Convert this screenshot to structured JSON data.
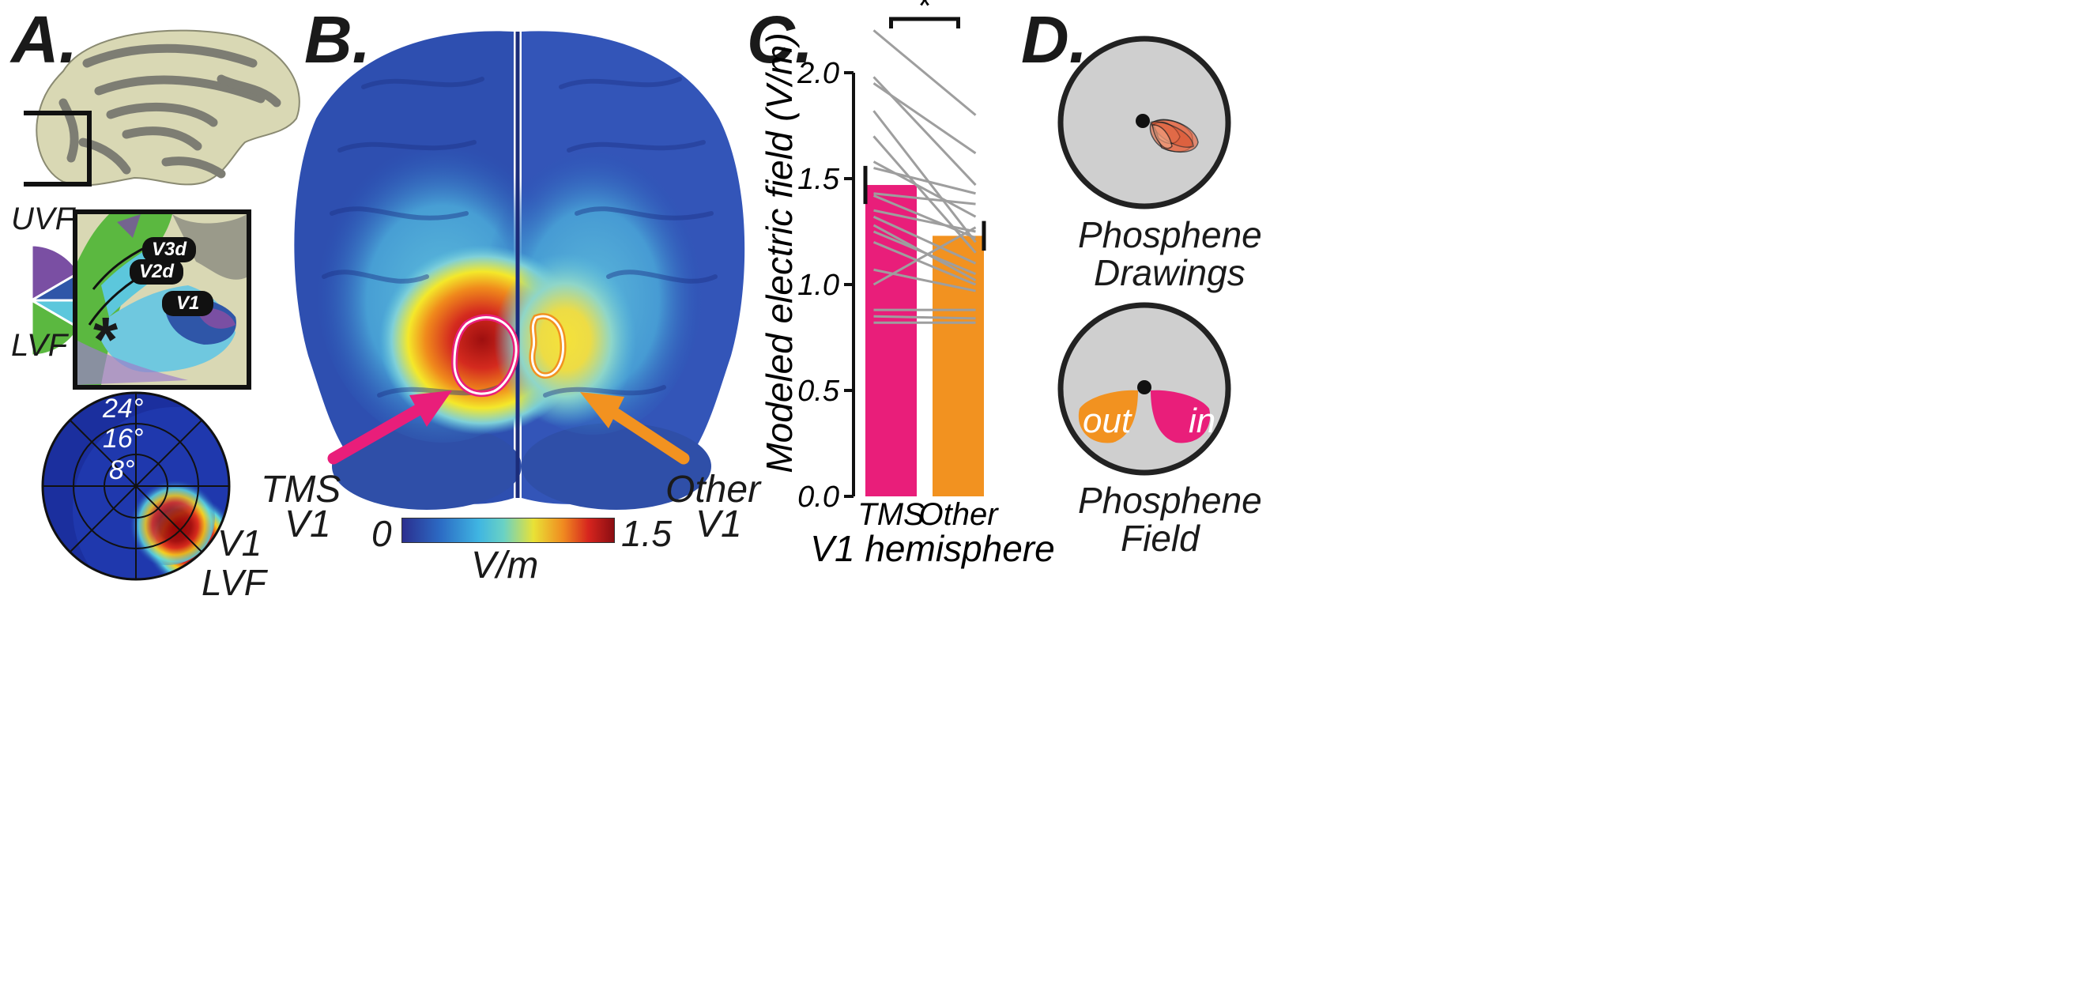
{
  "panels": {
    "a": {
      "letter": "A.",
      "uvf_label": "UVF",
      "lvf_label": "LVF",
      "area_labels": [
        "V3d",
        "V2d",
        "V1"
      ],
      "asterisk": "*",
      "eccentricity_labels": [
        "24°",
        "16°",
        "8°"
      ],
      "polar_caption_line1": "V1",
      "polar_caption_line2": "LVF"
    },
    "b": {
      "letter": "B.",
      "tms_label_line1": "TMS",
      "tms_label_line2": "V1",
      "other_label_line1": "Other",
      "other_label_line2": "V1",
      "colorbar_min": "0",
      "colorbar_max": "1.5",
      "colorbar_unit": "V/m"
    },
    "c": {
      "letter": "C.",
      "significance": "*"
    },
    "d": {
      "letter": "D.",
      "top_caption_line1": "Phosphene",
      "top_caption_line2": "Drawings",
      "bottom_caption_line1": "Phosphene",
      "bottom_caption_line2": "Field",
      "out_label": "out",
      "in_label": "in"
    }
  },
  "colors": {
    "tms": "#e91e7a",
    "other": "#f29220",
    "pair_line": "#9e9e9e",
    "field_disc": "#cfcfcf"
  },
  "chart_data": {
    "type": "bar",
    "categories": [
      "TMS",
      "Other"
    ],
    "values": [
      1.47,
      1.23
    ],
    "errors": [
      0.09,
      0.07
    ],
    "xlabel": "V1 hemisphere",
    "ylabel": "Modeled electric field (V/m)",
    "ylim": [
      0,
      2.0
    ],
    "yticks": [
      "0.0",
      "0.5",
      "1.0",
      "1.5",
      "2.0"
    ],
    "paired_lines": [
      [
        2.2,
        1.8
      ],
      [
        1.98,
        1.47
      ],
      [
        1.95,
        1.62
      ],
      [
        1.82,
        1.2
      ],
      [
        1.7,
        1.15
      ],
      [
        1.58,
        1.32
      ],
      [
        1.55,
        1.43
      ],
      [
        1.43,
        1.38
      ],
      [
        1.42,
        1.22
      ],
      [
        1.35,
        1.25
      ],
      [
        1.32,
        1.1
      ],
      [
        1.28,
        1.02
      ],
      [
        1.25,
        1.05
      ],
      [
        1.2,
        1.0
      ],
      [
        1.07,
        0.97
      ],
      [
        1.0,
        1.27
      ],
      [
        0.88,
        0.88
      ],
      [
        0.85,
        0.84
      ],
      [
        0.82,
        0.82
      ]
    ],
    "grid": false,
    "legend": "none"
  }
}
